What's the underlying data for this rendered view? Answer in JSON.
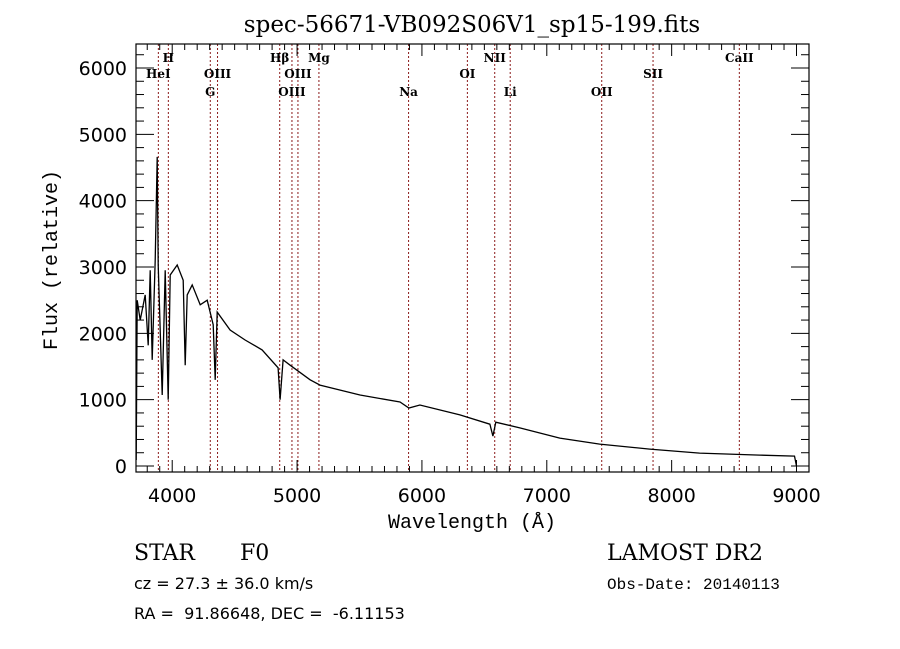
{
  "chart_data": {
    "type": "line",
    "title": "spec-56671-VB092S06V1_sp15-199.fits",
    "xlabel": "Wavelength (Å)",
    "ylabel": "Flux (relative)",
    "xlim": [
      3710,
      9100
    ],
    "ylim": [
      0,
      6350
    ],
    "x_ticks": [
      4000,
      5000,
      6000,
      7000,
      8000,
      9000
    ],
    "x_tick_labels": [
      "4000",
      "5000",
      "6000",
      "7000",
      "8000",
      "9000"
    ],
    "y_ticks": [
      0,
      1000,
      2000,
      3000,
      4000,
      5000,
      6000
    ],
    "y_tick_labels": [
      "0",
      "1000",
      "2000",
      "3000",
      "4000",
      "5000",
      "6000"
    ],
    "grid": false,
    "line_color": "#000000",
    "marker_color": "#8b1a1a",
    "series": [
      {
        "name": "spectrum",
        "x": [
          3712,
          3720,
          3744,
          3784,
          3808,
          3824,
          3840,
          3864,
          3880,
          3888,
          3920,
          3944,
          3968,
          3984,
          4040,
          4088,
          4104,
          4120,
          4160,
          4224,
          4280,
          4328,
          4344,
          4360,
          4464,
          4584,
          4720,
          4848,
          4864,
          4888,
          4944,
          5104,
          5184,
          5504,
          5824,
          5896,
          5984,
          6304,
          6544,
          6568,
          6592,
          6784,
          7104,
          7424,
          7824,
          8224,
          8704,
          8984,
          9000
        ],
        "y": [
          90,
          2500,
          2200,
          2580,
          1820,
          2950,
          1600,
          3100,
          4660,
          3030,
          1070,
          2950,
          1000,
          2880,
          3030,
          2800,
          1520,
          2580,
          2730,
          2430,
          2500,
          2130,
          1300,
          2320,
          2050,
          1900,
          1750,
          1480,
          1000,
          1600,
          1520,
          1300,
          1220,
          1070,
          965,
          875,
          920,
          770,
          630,
          450,
          660,
          575,
          420,
          330,
          255,
          195,
          165,
          150,
          0
        ]
      }
    ],
    "line_markers": [
      {
        "label": "HeI",
        "wavelength": 3889,
        "row": 2
      },
      {
        "label": "H",
        "wavelength": 3969,
        "row": 1
      },
      {
        "label": "G",
        "wavelength": 4305,
        "row": 3
      },
      {
        "label": "OIII",
        "wavelength": 4363,
        "row": 2
      },
      {
        "label": "Hβ",
        "wavelength": 4861,
        "row": 1
      },
      {
        "label": "OIII",
        "wavelength": 4959,
        "row": 3
      },
      {
        "label": "OIII",
        "wavelength": 5007,
        "row": 2
      },
      {
        "label": "Mg",
        "wavelength": 5175,
        "row": 1
      },
      {
        "label": "Na",
        "wavelength": 5893,
        "row": 3
      },
      {
        "label": "OI",
        "wavelength": 6364,
        "row": 2
      },
      {
        "label": "NII",
        "wavelength": 6583,
        "row": 1
      },
      {
        "label": "Li",
        "wavelength": 6707,
        "row": 3
      },
      {
        "label": "OII",
        "wavelength": 7440,
        "row": 3
      },
      {
        "label": "SII",
        "wavelength": 7851,
        "row": 2
      },
      {
        "label": "CaII",
        "wavelength": 8542,
        "row": 1
      }
    ]
  },
  "info": {
    "object_class": "STAR",
    "subclass": "F0",
    "survey": "LAMOST DR2",
    "redshift": "cz = 27.3 ± 36.0 km/s",
    "obs_date": "Obs-Date: 20140113",
    "coords": "RA =  91.86648, DEC =  -6.11153"
  }
}
